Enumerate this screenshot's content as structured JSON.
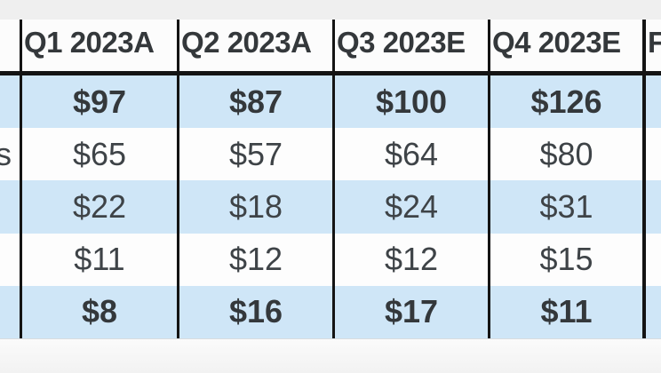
{
  "page": {
    "background_top": "#efefef",
    "background_below_table": "#f6f6f6"
  },
  "table": {
    "columns": [
      {
        "label": "",
        "truncated": true
      },
      {
        "label": "Q1 2023A"
      },
      {
        "label": "Q2 2023A"
      },
      {
        "label": "Q3 2023E"
      },
      {
        "label": "Q4 2023E"
      },
      {
        "label": "F",
        "truncated": true
      }
    ],
    "rows": [
      {
        "label": "",
        "values": [
          "$97",
          "$87",
          "$100",
          "$126"
        ],
        "bold": true
      },
      {
        "label": "s",
        "values": [
          "$65",
          "$57",
          "$64",
          "$80"
        ],
        "bold": false
      },
      {
        "label": "",
        "values": [
          "$22",
          "$18",
          "$24",
          "$31"
        ],
        "bold": false
      },
      {
        "label": "",
        "values": [
          "$11",
          "$12",
          "$12",
          "$15"
        ],
        "bold": false
      },
      {
        "label": "",
        "values": [
          "$8",
          "$16",
          "$17",
          "$11"
        ],
        "bold": true
      }
    ],
    "colors": {
      "stripe_blue": "#cfe6f7",
      "stripe_white": "#fdfdfd",
      "header_bg": "#fcfcfc",
      "grid_border": "#141414",
      "text": "#3e4347",
      "text_bold": "#34383b"
    }
  },
  "chart_data": {
    "type": "table",
    "columns": [
      "Q1 2023A",
      "Q2 2023A",
      "Q3 2023E",
      "Q4 2023E"
    ],
    "truncated_extra_column_label": "F",
    "row_labels_visible": [
      "",
      "s",
      "",
      "",
      ""
    ],
    "rows_display": [
      [
        "$97",
        "$87",
        "$100",
        "$126"
      ],
      [
        "$65",
        "$57",
        "$64",
        "$80"
      ],
      [
        "$22",
        "$18",
        "$24",
        "$31"
      ],
      [
        "$11",
        "$12",
        "$12",
        "$15"
      ],
      [
        "$8",
        "$16",
        "$17",
        "$11"
      ]
    ],
    "rows_numeric": [
      [
        97,
        87,
        100,
        126
      ],
      [
        65,
        57,
        64,
        80
      ],
      [
        22,
        18,
        24,
        31
      ],
      [
        11,
        12,
        12,
        15
      ],
      [
        8,
        16,
        17,
        11
      ]
    ],
    "emphasized_row_indices": [
      0,
      4
    ],
    "notes": "Cropped table screenshot: row-label column cut off at left edge (only a trailing 's' visible on the second row); a fifth column whose header begins with 'F' is cut off at the right edge."
  }
}
